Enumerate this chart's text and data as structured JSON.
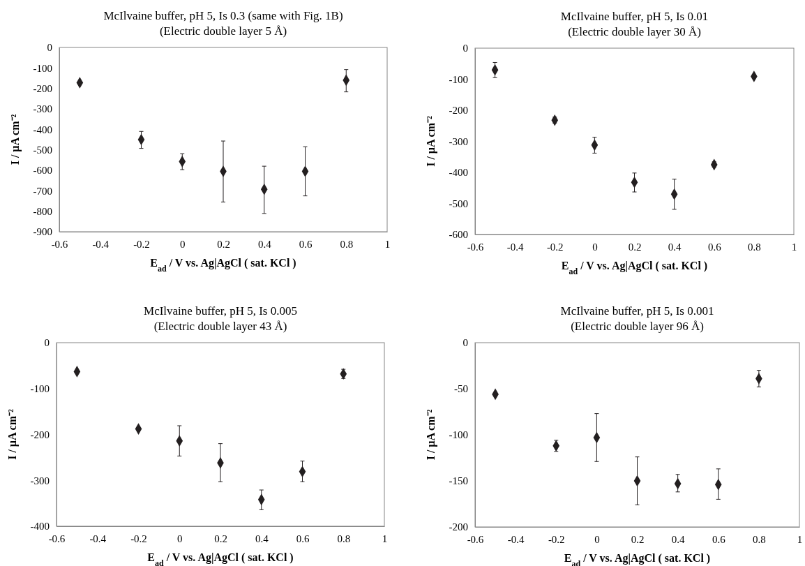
{
  "chart_data": [
    {
      "type": "scatter",
      "title": "McIlvaine buffer, pH 5, Is 0.3 (same with Fig. 1B)",
      "subtitle": "(Electric double layer 5 Å)",
      "xlabel": "E$_{ad}$ / V vs. Ag|AgCl ( sat. KCl )",
      "ylabel": "I / μA cm⁻²",
      "marker": "diamond",
      "xlim": [
        -0.6,
        1
      ],
      "xticks": [
        -0.6,
        -0.4,
        -0.2,
        0,
        0.2,
        0.4,
        0.6,
        0.8,
        1
      ],
      "ylim": [
        -900,
        0
      ],
      "yticks": [
        -900,
        -800,
        -700,
        -600,
        -500,
        -400,
        -300,
        -200,
        -100,
        0
      ],
      "x": [
        -0.5,
        -0.2,
        0,
        0.2,
        0.4,
        0.6,
        0.8
      ],
      "series": [
        {
          "color": "#231f20",
          "values": [
            -172,
            -450,
            -557,
            -605,
            -693,
            -605,
            -160
          ],
          "errors": [
            null,
            [
              -493,
              -410
            ],
            [
              -597,
              -519
            ],
            [
              -755,
              -457
            ],
            [
              -811,
              -580
            ],
            [
              -725,
              -485
            ],
            [
              -217,
              -108
            ]
          ]
        }
      ]
    },
    {
      "type": "scatter",
      "title": "McIlvaine buffer, pH 5, Is 0.01",
      "subtitle": "(Electric double layer 30 Å)",
      "xlabel": "E$_{ad}$ / V vs. Ag|AgCl ( sat. KCl )",
      "ylabel": "I / μA cm⁻²",
      "marker": "diamond",
      "xlim": [
        -0.6,
        1
      ],
      "xticks": [
        -0.6,
        -0.4,
        -0.2,
        0,
        0.2,
        0.4,
        0.6,
        0.8,
        1
      ],
      "ylim": [
        -600,
        0
      ],
      "yticks": [
        -600,
        -500,
        -400,
        -300,
        -200,
        -100,
        0
      ],
      "x": [
        -0.5,
        -0.2,
        0,
        0.2,
        0.4,
        0.6,
        0.8
      ],
      "series": [
        {
          "color": "#231f20",
          "values": [
            -70,
            -232,
            -312,
            -432,
            -470,
            -375,
            -91
          ],
          "errors": [
            [
              -95,
              -46
            ],
            [
              -241,
              -222
            ],
            [
              -338,
              -287
            ],
            [
              -463,
              -402
            ],
            [
              -519,
              -422
            ],
            [
              -383,
              -366
            ],
            null
          ]
        }
      ]
    },
    {
      "type": "scatter",
      "title": "McIlvaine buffer, pH 5, Is 0.005",
      "subtitle": "(Electric double layer 43 Å)",
      "xlabel": "E$_{ad}$ / V vs. Ag|AgCl ( sat. KCl )",
      "ylabel": "I / μA cm⁻²",
      "marker": "diamond",
      "xlim": [
        -0.6,
        1
      ],
      "xticks": [
        -0.6,
        -0.4,
        -0.2,
        0,
        0.2,
        0.4,
        0.6,
        0.8,
        1
      ],
      "ylim": [
        -400,
        0
      ],
      "yticks": [
        -400,
        -300,
        -200,
        -100,
        0
      ],
      "x": [
        -0.5,
        -0.2,
        0,
        0.2,
        0.4,
        0.6,
        0.8
      ],
      "series": [
        {
          "color": "#231f20",
          "values": [
            -63,
            -188,
            -214,
            -262,
            -342,
            -281,
            -68
          ],
          "errors": [
            null,
            null,
            [
              -247,
              -181
            ],
            [
              -303,
              -220
            ],
            [
              -364,
              -321
            ],
            [
              -303,
              -258
            ],
            [
              -78,
              -58
            ]
          ]
        }
      ]
    },
    {
      "type": "scatter",
      "title": "McIlvaine buffer, pH 5, Is 0.001",
      "subtitle": "(Electric double layer 96 Å)",
      "xlabel": "E$_{ad}$ / V vs. Ag|AgCl ( sat. KCl )",
      "ylabel": "I / μA cm⁻²",
      "marker": "diamond",
      "xlim": [
        -0.6,
        1
      ],
      "xticks": [
        -0.6,
        -0.4,
        -0.2,
        0,
        0.2,
        0.4,
        0.6,
        0.8,
        1
      ],
      "ylim": [
        -200,
        0
      ],
      "yticks": [
        -200,
        -150,
        -100,
        -50,
        0
      ],
      "x": [
        -0.5,
        -0.2,
        0,
        0.2,
        0.4,
        0.6,
        0.8
      ],
      "series": [
        {
          "color": "#231f20",
          "values": [
            -56,
            -112,
            -103,
            -150,
            -153,
            -154,
            -39
          ],
          "errors": [
            null,
            [
              -118,
              -106
            ],
            [
              -129,
              -77
            ],
            [
              -176,
              -124
            ],
            [
              -162,
              -143
            ],
            [
              -170,
              -137
            ],
            [
              -48,
              -30
            ]
          ]
        }
      ]
    }
  ]
}
